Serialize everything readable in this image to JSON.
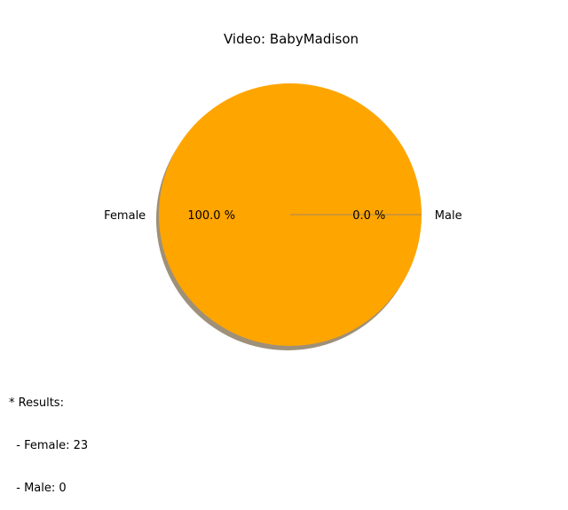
{
  "chart_data": {
    "type": "pie",
    "title": "Video: BabyMadison",
    "slices": [
      {
        "label": "Female",
        "value": 23,
        "percent_label": "100.0 %",
        "color": "#FFA500"
      },
      {
        "label": "Male",
        "value": 0,
        "percent_label": "0.0 %",
        "color": "#FFA500"
      }
    ],
    "shadow": true,
    "shadow_color": "#9E9079",
    "leader_line_color": "#808080"
  },
  "results": {
    "heading": "* Results:",
    "lines": [
      "  - Female: 23",
      "  - Male: 0"
    ]
  }
}
